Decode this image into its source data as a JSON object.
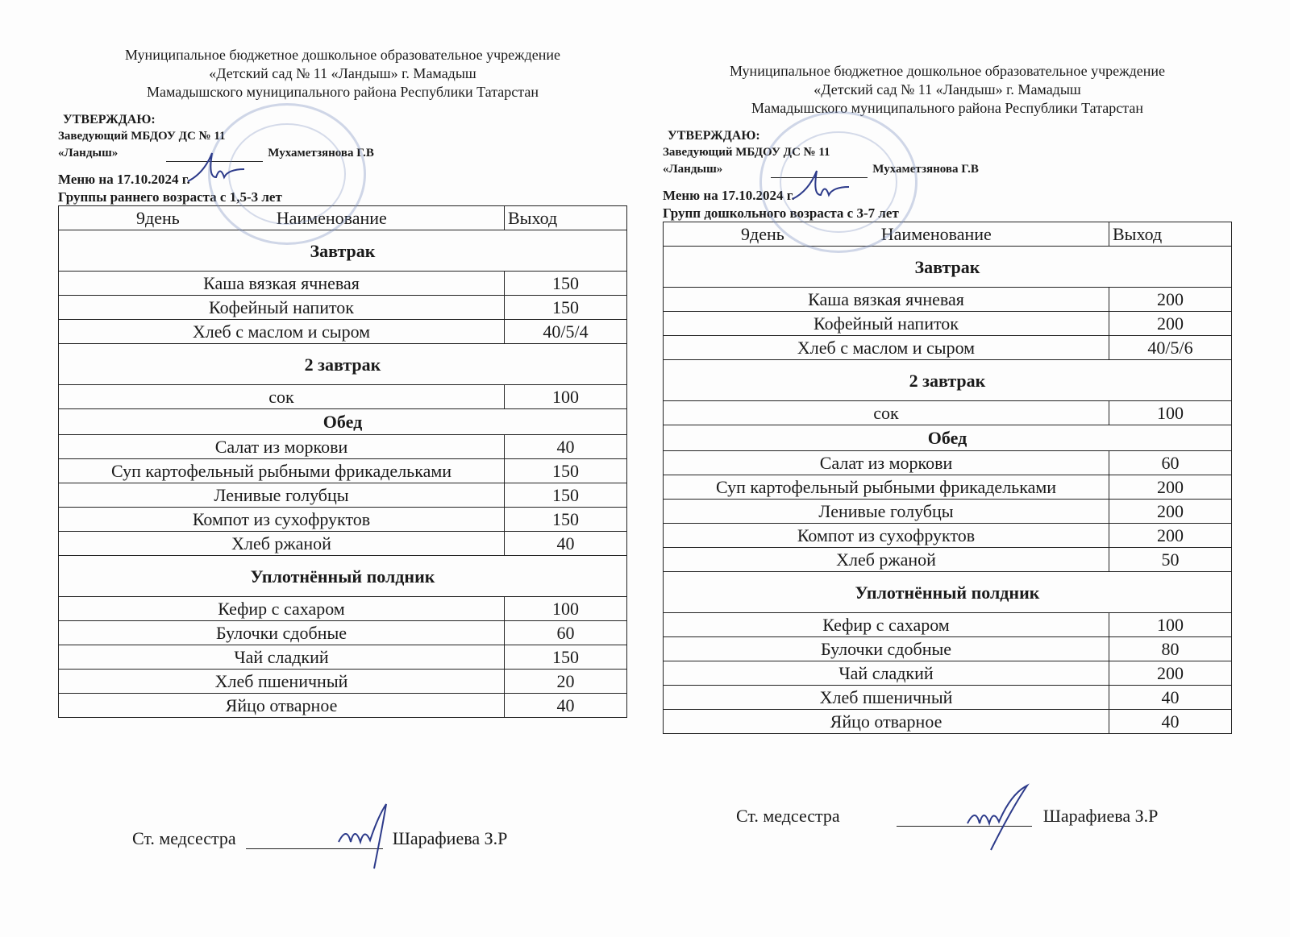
{
  "sheets": [
    {
      "org": [
        "Муниципальное бюджетное дошкольное образовательное учреждение",
        "«Детский сад № 11 «Ландыш» г. Мамадыш",
        "Мамадышского муниципального района Республики Татарстан"
      ],
      "approve": "УТВЕРЖДАЮ:",
      "head_title": "Заведующий МБДОУ ДС № 11",
      "head_org": "«Ландыш»",
      "head_name": "Мухаметзянова Г.В",
      "menu_date": "Меню на 17.10.2024 г.",
      "group": "Группы  раннего возраста с 1,5-3 лет",
      "columns": [
        "9день",
        "Наименование",
        "Выход"
      ],
      "sections": [
        {
          "title": "Завтрак",
          "items": [
            [
              "Каша вязкая ячневая",
              "150"
            ],
            [
              "Кофейный напиток",
              "150"
            ],
            [
              "Хлеб  с маслом и сыром",
              "40/5/4"
            ]
          ]
        },
        {
          "title": "2 завтрак",
          "items": [
            [
              "сок",
              "100"
            ]
          ]
        },
        {
          "title": "Обед",
          "items": [
            [
              "Салат из моркови",
              "40"
            ],
            [
              "Суп картофельный  рыбными фрикадельками",
              "150"
            ],
            [
              "Ленивые голубцы",
              "150"
            ],
            [
              "Компот из сухофруктов",
              "150"
            ],
            [
              "Хлеб ржаной",
              "40"
            ]
          ]
        },
        {
          "title": "Уплотнённый полдник",
          "items": [
            [
              "Кефир с сахаром",
              "100"
            ],
            [
              "Булочки сдобные",
              "60"
            ],
            [
              "Чай сладкий",
              "150"
            ],
            [
              "Хлеб пшеничный",
              "20"
            ],
            [
              "Яйцо отварное",
              "40"
            ]
          ]
        }
      ],
      "nurse_title": "Ст. медсестра",
      "nurse_name": "Шарафиева З.Р"
    },
    {
      "org": [
        "Муниципальное бюджетное дошкольное образовательное учреждение",
        "«Детский сад № 11 «Ландыш» г. Мамадыш",
        "Мамадышского муниципального района Республики Татарстан"
      ],
      "approve": "УТВЕРЖДАЮ:",
      "head_title": "Заведующий МБДОУ ДС № 11",
      "head_org": "«Ландыш»",
      "head_name": "Мухаметзянова Г.В",
      "menu_date": "Меню на 17.10.2024 г.",
      "group": "Групп дошкольного возраста с 3-7 лет",
      "columns": [
        "9день",
        "Наименование",
        "Выход"
      ],
      "sections": [
        {
          "title": "Завтрак",
          "items": [
            [
              "Каша вязкая ячневая",
              "200"
            ],
            [
              "Кофейный напиток",
              "200"
            ],
            [
              "Хлеб с маслом и сыром",
              "40/5/6"
            ]
          ]
        },
        {
          "title": "2 завтрак",
          "items": [
            [
              "сок",
              "100"
            ]
          ]
        },
        {
          "title": "Обед",
          "items": [
            [
              "Салат из моркови",
              "60"
            ],
            [
              "Суп картофельный рыбными фрикадельками",
              "200"
            ],
            [
              "Ленивые голубцы",
              "200"
            ],
            [
              "Компот из сухофруктов",
              "200"
            ],
            [
              "Хлеб ржаной",
              "50"
            ]
          ]
        },
        {
          "title": "Уплотнённый полдник",
          "items": [
            [
              "Кефир с сахаром",
              "100"
            ],
            [
              "Булочки сдобные",
              "80"
            ],
            [
              "Чай сладкий",
              "200"
            ],
            [
              "Хлеб пшеничный",
              "40"
            ],
            [
              "Яйцо отварное",
              "40"
            ]
          ]
        }
      ],
      "nurse_title": "Ст. медсестра",
      "nurse_name": "Шарафиева З.Р"
    }
  ]
}
